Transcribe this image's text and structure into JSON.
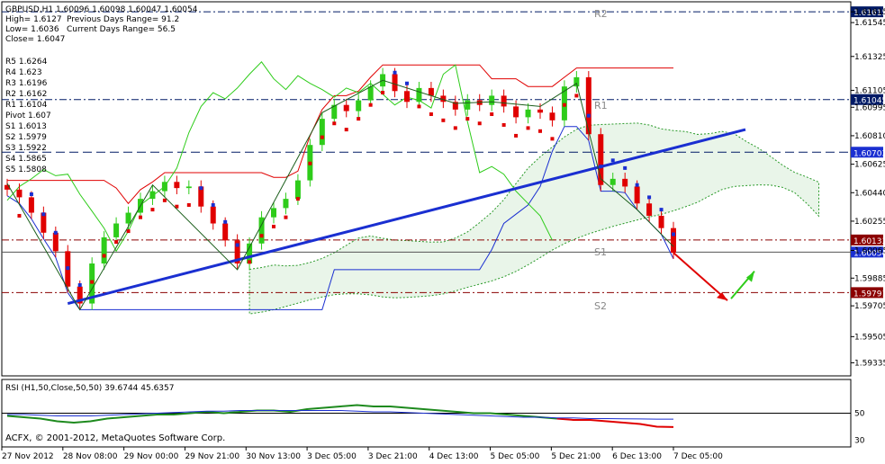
{
  "header": {
    "symbol_line": "GBPUSD,H1  1.60096 1.60098 1.60047 1.60054",
    "high": "High= 1.6127",
    "low": "Low= 1.6036",
    "close": "Close= 1.6047",
    "prev_range": "Previous Days Range= 91.2",
    "curr_range": "Current Days Range= 56.5"
  },
  "pivots": [
    "R5 1.6264",
    "R4 1.623",
    "R3 1.6196",
    "R2 1.6162",
    "R1 1.6104",
    "Pivot 1.607",
    "S1 1.6013",
    "S2 1.5979",
    "S3 1.5922",
    "S4 1.5865",
    "S5 1.5808"
  ],
  "level_labels": {
    "r2": "R2",
    "r1": "R1",
    "s1": "S1",
    "s2": "S2"
  },
  "rsi_label": "RSI (H1,50,Close,50,50) 39.6744 45.6357",
  "copyright": "ACFX, © 2001-2012, MetaQuotes Software Corp.",
  "colors": {
    "bull": "#2ecc1a",
    "bear": "#e00000",
    "trend": "#1a2fd1",
    "cloud": "#2a9a2a",
    "rsi_green": "#1e8a1e",
    "rsi_blue": "#1a2fd1",
    "rsi_red": "#e00000"
  },
  "chart_data": [
    {
      "type": "line",
      "title": "GBPUSD,H1",
      "ylim": [
        1.5925,
        1.6168
      ],
      "y_ticks": [
        "1.61615",
        "1.61545",
        "1.61325",
        "1.61105",
        "1.60995",
        "1.60810",
        "1.60625",
        "1.60440",
        "1.60255",
        "1.60065",
        "1.59885",
        "1.59705",
        "1.59505",
        "1.59335"
      ],
      "x_ticks": [
        "27 Nov 2012",
        "28 Nov 08:00",
        "29 Nov 00:00",
        "29 Nov 21:00",
        "30 Nov 13:00",
        "3 Dec 05:00",
        "3 Dec 21:00",
        "4 Dec 13:00",
        "5 Dec 05:00",
        "5 Dec 21:00",
        "6 Dec 13:00",
        "7 Dec 05:00"
      ],
      "price_levels": [
        {
          "value": 1.61615,
          "label": "1.61615",
          "style": "dashdot",
          "color": "#001a66"
        },
        {
          "value": 1.61045,
          "label": "1.61045",
          "style": "dashdot",
          "color": "#001a66"
        },
        {
          "value": 1.60703,
          "label": "1.60703",
          "style": "dash",
          "color": "#001a66"
        },
        {
          "value": 1.60133,
          "label": "1.60133",
          "style": "dashdot",
          "color": "#8b0000"
        },
        {
          "value": 1.60054,
          "label": "1.60054",
          "style": "solid",
          "color": "#555555"
        },
        {
          "value": 1.59791,
          "label": "1.59791",
          "style": "dashdot",
          "color": "#8b0000"
        }
      ],
      "highlighted_labels": [
        "1.60703",
        "1.60054"
      ],
      "close": [
        1.6046,
        1.6041,
        1.6031,
        1.6018,
        1.6006,
        1.5983,
        1.5972,
        1.5998,
        1.6015,
        1.6024,
        1.6031,
        1.604,
        1.6045,
        1.6051,
        1.6047,
        1.6048,
        1.6035,
        1.6024,
        1.6013,
        1.5998,
        1.6011,
        1.6028,
        1.6034,
        1.604,
        1.6052,
        1.6075,
        1.6092,
        1.6101,
        1.6097,
        1.6104,
        1.6113,
        1.6121,
        1.611,
        1.6103,
        1.6112,
        1.6107,
        1.6103,
        1.6098,
        1.6104,
        1.6101,
        1.6107,
        1.61,
        1.6093,
        1.6098,
        1.6096,
        1.6091,
        1.6113,
        1.6119,
        1.6082,
        1.6049,
        1.6053,
        1.6048,
        1.6037,
        1.6029,
        1.6021,
        1.6005
      ]
    },
    {
      "type": "line",
      "title": "RSI (H1,50,Close,50,50)",
      "ylim": [
        25,
        75
      ],
      "y_ticks": [
        30,
        50
      ],
      "series": [
        {
          "name": "RSI",
          "values": [
            48,
            47,
            46,
            44,
            43,
            44,
            46,
            47,
            48,
            49,
            49,
            50,
            51,
            50,
            51,
            52,
            52,
            51,
            53,
            54,
            55,
            56,
            55,
            55,
            54,
            53,
            52,
            51,
            50,
            50,
            49,
            48,
            47,
            46,
            45,
            45,
            44,
            43,
            42,
            40,
            39.7
          ]
        },
        {
          "name": "Signal",
          "values": [
            49,
            49,
            48.5,
            48,
            48,
            48,
            48.5,
            49,
            49.5,
            50,
            50.5,
            51,
            51.5,
            51.5,
            52,
            52,
            52,
            52,
            52,
            52,
            52,
            51.5,
            51,
            51,
            50.5,
            50,
            49.5,
            49,
            48.5,
            48,
            47.5,
            47,
            47,
            46.5,
            46.5,
            46,
            46,
            45.8,
            45.7,
            45.6,
            45.6
          ]
        }
      ]
    }
  ]
}
